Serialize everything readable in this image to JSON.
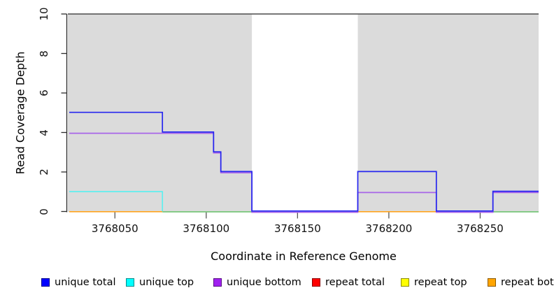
{
  "figure": {
    "bg": "#ffffff"
  },
  "axes": {
    "x": {
      "title": "Coordinate in Reference Genome",
      "ticks": [
        "3768050",
        "3768100",
        "3768150",
        "3768200",
        "3768250"
      ],
      "tick_values": [
        3768050,
        3768100,
        3768150,
        3768200,
        3768250
      ]
    },
    "y": {
      "title": "Read Coverage Depth",
      "ticks": [
        "0",
        "2",
        "4",
        "6",
        "8",
        "10"
      ],
      "tick_values": [
        0,
        2,
        4,
        6,
        8,
        10
      ]
    }
  },
  "chart_data": {
    "type": "line",
    "subtype": "step-coverage",
    "title": "",
    "xlabel": "Coordinate in Reference Genome",
    "ylabel": "Read Coverage Depth",
    "xlim": [
      3768025,
      3768282
    ],
    "ylim": [
      0,
      10
    ],
    "grid": false,
    "legend_position": "bottom",
    "shaded_regions": {
      "color": "#dbdbdb",
      "ranges": [
        [
          3768025,
          3768125
        ],
        [
          3768183,
          3768282
        ]
      ]
    },
    "unshaded_gap": [
      3768125,
      3768183
    ],
    "cap_line": {
      "y": 10,
      "color": "#4a4a4a"
    },
    "series": [
      {
        "name": "repeat top (blended with unique top at 0)",
        "key": "blend-green",
        "color": "#77c679",
        "segments": [
          [
            3768076,
            3768125,
            0
          ],
          [
            3768257,
            3768282,
            0
          ]
        ]
      },
      {
        "name": "repeat bottom",
        "key": "repeat-bottom",
        "color": "#ffa41e",
        "segments": [
          [
            3768025,
            3768076,
            0
          ],
          [
            3768183,
            3768226,
            0
          ]
        ]
      },
      {
        "name": "unique top",
        "key": "unique-top",
        "color": "#5fefef",
        "segments": [
          [
            3768025,
            3768076,
            1
          ],
          [
            3768076,
            3768076,
            0
          ]
        ]
      },
      {
        "name": "unique bottom",
        "key": "unique-bottom",
        "color": "#a865e8",
        "segments": [
          [
            3768025,
            3768104,
            4
          ],
          [
            3768104,
            3768108,
            3
          ],
          [
            3768108,
            3768125,
            2
          ],
          [
            3768125,
            3768183,
            0
          ],
          [
            3768183,
            3768226,
            1
          ],
          [
            3768226,
            3768257,
            0
          ],
          [
            3768257,
            3768282,
            1
          ]
        ]
      },
      {
        "name": "unique total",
        "key": "unique-total",
        "color": "#2626ef",
        "segments": [
          [
            3768025,
            3768076,
            5
          ],
          [
            3768076,
            3768104,
            4
          ],
          [
            3768104,
            3768108,
            3
          ],
          [
            3768108,
            3768125,
            2
          ],
          [
            3768125,
            3768183,
            0
          ],
          [
            3768183,
            3768226,
            2
          ],
          [
            3768226,
            3768257,
            0
          ],
          [
            3768257,
            3768282,
            1
          ]
        ]
      },
      {
        "name": "repeat total",
        "key": "repeat-total",
        "color": "#ff0000",
        "segments": []
      }
    ]
  },
  "legend": {
    "items": [
      {
        "label": "unique total",
        "color": "#0000ff"
      },
      {
        "label": "unique top",
        "color": "#00ffff"
      },
      {
        "label": "unique bottom",
        "color": "#a020f0"
      },
      {
        "label": "repeat total",
        "color": "#ff0000"
      },
      {
        "label": "repeat top",
        "color": "#ffff00"
      },
      {
        "label": "repeat bottom",
        "color": "#ffa500"
      }
    ]
  }
}
